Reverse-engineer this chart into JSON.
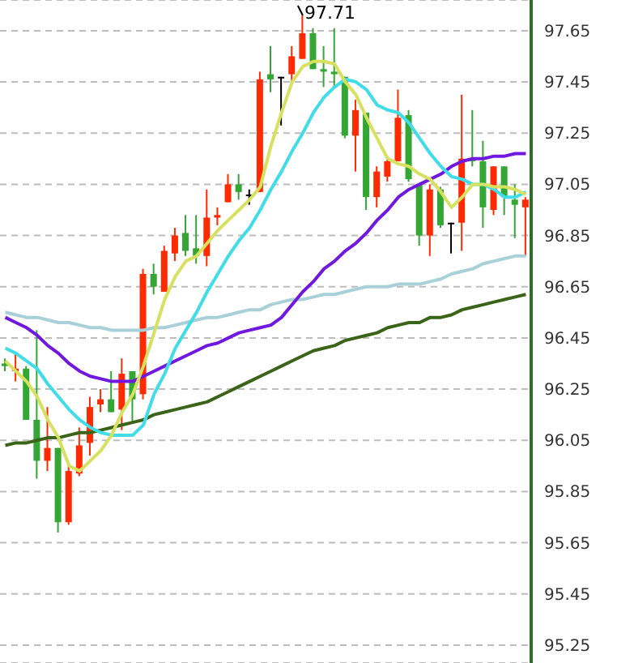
{
  "chart_data": {
    "type": "candlestick",
    "categories": [
      null,
      null,
      null,
      null,
      null,
      null,
      null,
      null,
      null,
      null,
      null,
      null,
      null,
      null,
      null,
      null,
      null,
      null,
      null,
      null,
      null,
      null,
      null,
      null,
      null,
      null,
      null,
      null,
      null,
      null,
      null,
      null,
      null,
      null,
      null,
      null,
      null,
      null,
      null,
      null,
      null,
      null,
      null,
      null,
      null,
      null,
      null,
      null,
      null,
      null
    ],
    "ohlc": [
      [
        96.35,
        96.37,
        96.32,
        96.34
      ],
      [
        96.32,
        96.39,
        96.28,
        96.33
      ],
      [
        96.33,
        96.34,
        96.13,
        96.13
      ],
      [
        96.13,
        96.48,
        95.9,
        95.97
      ],
      [
        95.97,
        96.18,
        95.93,
        96.02
      ],
      [
        96.02,
        96.02,
        95.69,
        95.73
      ],
      [
        95.73,
        95.95,
        95.72,
        95.93
      ],
      [
        95.92,
        96.1,
        95.91,
        96.03
      ],
      [
        96.04,
        96.22,
        95.99,
        96.18
      ],
      [
        96.19,
        96.25,
        96.16,
        96.21
      ],
      [
        96.21,
        96.32,
        96.16,
        96.16
      ],
      [
        96.17,
        96.37,
        96.09,
        96.31
      ],
      [
        96.32,
        96.32,
        96.12,
        96.21
      ],
      [
        96.23,
        96.72,
        96.21,
        96.7
      ],
      [
        96.7,
        96.74,
        96.62,
        96.65
      ],
      [
        96.63,
        96.81,
        96.63,
        96.79
      ],
      [
        96.78,
        96.88,
        96.75,
        96.85
      ],
      [
        96.86,
        96.93,
        96.77,
        96.79
      ],
      [
        96.8,
        96.93,
        96.74,
        96.77
      ],
      [
        96.77,
        97.03,
        96.73,
        96.92
      ],
      [
        96.92,
        96.96,
        96.89,
        96.93
      ],
      [
        96.98,
        97.09,
        96.98,
        97.05
      ],
      [
        97.05,
        97.09,
        96.99,
        97.02
      ],
      [
        97.01,
        97.03,
        96.97,
        97.01
      ],
      [
        97.02,
        97.49,
        97.02,
        97.46
      ],
      [
        97.48,
        97.59,
        97.41,
        97.46
      ],
      [
        97.47,
        97.47,
        97.28,
        97.47
      ],
      [
        97.48,
        97.59,
        97.45,
        97.55
      ],
      [
        97.54,
        97.71,
        97.54,
        97.64
      ],
      [
        97.64,
        97.66,
        97.5,
        97.5
      ],
      [
        97.5,
        97.59,
        97.43,
        97.49
      ],
      [
        97.49,
        97.66,
        97.43,
        97.48
      ],
      [
        97.47,
        97.47,
        97.23,
        97.24
      ],
      [
        97.24,
        97.38,
        97.1,
        97.34
      ],
      [
        97.33,
        97.33,
        96.95,
        97.0
      ],
      [
        97.0,
        97.12,
        96.96,
        97.1
      ],
      [
        97.08,
        97.15,
        97.06,
        97.14
      ],
      [
        97.14,
        97.42,
        97.14,
        97.31
      ],
      [
        97.32,
        97.34,
        97.06,
        97.07
      ],
      [
        97.05,
        97.05,
        96.81,
        96.85
      ],
      [
        96.85,
        97.05,
        96.77,
        97.03
      ],
      [
        97.03,
        97.04,
        96.88,
        96.89
      ],
      [
        96.9,
        96.9,
        96.78,
        96.9
      ],
      [
        96.9,
        97.4,
        96.79,
        97.15
      ],
      [
        97.15,
        97.34,
        97.12,
        97.14
      ],
      [
        97.14,
        97.22,
        96.88,
        96.96
      ],
      [
        96.95,
        97.12,
        96.93,
        97.12
      ],
      [
        97.12,
        97.12,
        96.93,
        97.0
      ],
      [
        96.99,
        97.05,
        96.84,
        96.97
      ],
      [
        96.96,
        97.0,
        96.77,
        96.99
      ]
    ],
    "colors": [
      "#33a633",
      "#ff2a00",
      "#33a633",
      "#33a633",
      "#ff2a00",
      "#33a633",
      "#ff2a00",
      "#ff2a00",
      "#ff2a00",
      "#ff2a00",
      "#33a633",
      "#ff2a00",
      "#33a633",
      "#ff2a00",
      "#33a633",
      "#ff2a00",
      "#ff2a00",
      "#33a633",
      "#33a633",
      "#ff2a00",
      "#ff2a00",
      "#ff2a00",
      "#33a633",
      "#000000",
      "#ff2a00",
      "#33a633",
      "#000000",
      "#ff2a00",
      "#ff2a00",
      "#33a633",
      "#33a633",
      "#33a633",
      "#33a633",
      "#ff2a00",
      "#33a633",
      "#ff2a00",
      "#ff2a00",
      "#ff2a00",
      "#33a633",
      "#33a633",
      "#ff2a00",
      "#33a633",
      "#000000",
      "#ff2a00",
      "#33a633",
      "#33a633",
      "#ff2a00",
      "#33a633",
      "#33a633",
      "#ff2a00"
    ],
    "series": [
      {
        "type": "line",
        "color": "#3a6418",
        "values": [
          96.03,
          96.04,
          96.04,
          96.05,
          96.06,
          96.06,
          96.07,
          96.08,
          96.08,
          96.09,
          96.1,
          96.11,
          96.12,
          96.13,
          96.15,
          96.16,
          96.17,
          96.18,
          96.19,
          96.2,
          96.22,
          96.24,
          96.26,
          96.28,
          96.3,
          96.32,
          96.34,
          96.36,
          96.38,
          96.4,
          96.41,
          96.42,
          96.44,
          96.45,
          96.46,
          96.47,
          96.49,
          96.5,
          96.51,
          96.51,
          96.53,
          96.53,
          96.54,
          96.56,
          96.57,
          96.58,
          96.59,
          96.6,
          96.61,
          96.62
        ]
      },
      {
        "type": "line",
        "color": "#a8d0d8",
        "values": [
          96.55,
          96.54,
          96.53,
          96.53,
          96.52,
          96.51,
          96.51,
          96.5,
          96.49,
          96.49,
          96.48,
          96.48,
          96.48,
          96.48,
          96.49,
          96.49,
          96.5,
          96.51,
          96.52,
          96.53,
          96.53,
          96.54,
          96.55,
          96.56,
          96.56,
          96.58,
          96.59,
          96.6,
          96.6,
          96.61,
          96.62,
          96.62,
          96.63,
          96.64,
          96.65,
          96.65,
          96.65,
          96.66,
          96.66,
          96.66,
          96.67,
          96.68,
          96.7,
          96.71,
          96.72,
          96.74,
          96.75,
          96.76,
          96.77,
          96.77
        ]
      },
      {
        "type": "line",
        "color": "#7018e0",
        "values": [
          96.53,
          96.51,
          96.49,
          96.46,
          96.42,
          96.39,
          96.35,
          96.32,
          96.3,
          96.29,
          96.28,
          96.28,
          96.28,
          96.3,
          96.32,
          96.34,
          96.36,
          96.38,
          96.4,
          96.42,
          96.43,
          96.45,
          96.47,
          96.48,
          96.49,
          96.5,
          96.53,
          96.58,
          96.63,
          96.67,
          96.72,
          96.75,
          96.79,
          96.82,
          96.86,
          96.91,
          96.95,
          97.0,
          97.03,
          97.05,
          97.07,
          97.09,
          97.12,
          97.14,
          97.15,
          97.15,
          97.16,
          97.16,
          97.17,
          97.17
        ]
      },
      {
        "type": "line",
        "color": "#40dce8",
        "values": [
          96.41,
          96.39,
          96.36,
          96.33,
          96.27,
          96.22,
          96.17,
          96.13,
          96.1,
          96.08,
          96.07,
          96.07,
          96.07,
          96.11,
          96.23,
          96.31,
          96.41,
          96.48,
          96.55,
          96.63,
          96.7,
          96.77,
          96.83,
          96.88,
          96.95,
          97.03,
          97.1,
          97.18,
          97.25,
          97.33,
          97.39,
          97.43,
          97.46,
          97.45,
          97.42,
          97.36,
          97.34,
          97.33,
          97.29,
          97.23,
          97.17,
          97.12,
          97.08,
          97.07,
          97.05,
          97.05,
          97.03,
          97.0,
          97.0,
          97.02
        ]
      },
      {
        "type": "line",
        "color": "#d8e060",
        "values": [
          96.36,
          96.32,
          96.28,
          96.22,
          96.13,
          96.06,
          95.95,
          95.93,
          95.97,
          96.01,
          96.07,
          96.16,
          96.23,
          96.34,
          96.47,
          96.6,
          96.69,
          96.75,
          96.77,
          96.82,
          96.87,
          96.91,
          96.95,
          96.99,
          97.04,
          97.2,
          97.33,
          97.45,
          97.51,
          97.53,
          97.53,
          97.52,
          97.45,
          97.4,
          97.31,
          97.23,
          97.15,
          97.13,
          97.12,
          97.09,
          97.07,
          97.02,
          96.96,
          97.0,
          97.05,
          97.05,
          97.04,
          97.04,
          97.03,
          97.01
        ]
      }
    ],
    "annotations": [
      "97.71"
    ],
    "ylim": [
      95.18,
      97.77
    ],
    "yticks": [
      95.25,
      95.45,
      95.65,
      95.85,
      96.05,
      96.25,
      96.45,
      96.65,
      96.85,
      97.05,
      97.25,
      97.45,
      97.65
    ],
    "tick_labels": "y",
    "grid": "y"
  }
}
